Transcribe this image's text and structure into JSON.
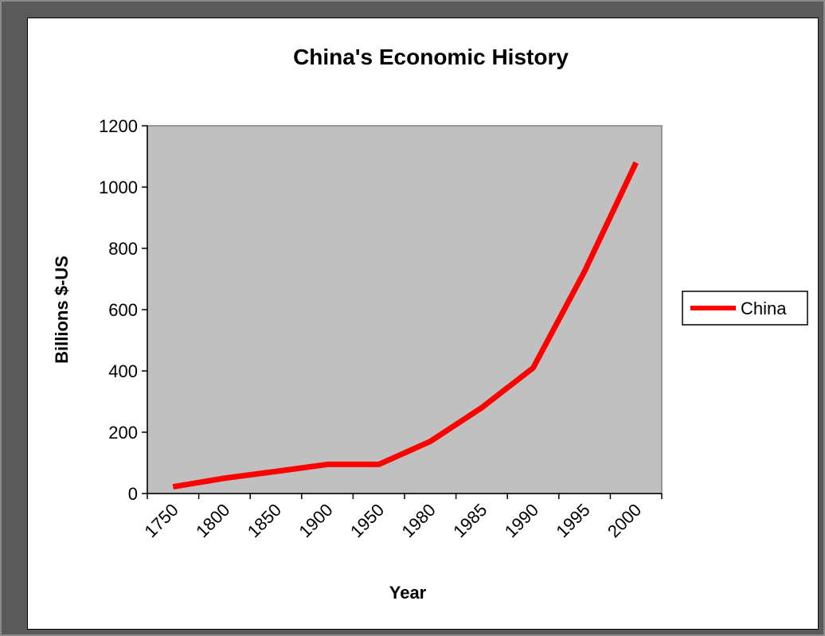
{
  "chart_data": {
    "type": "line",
    "title": "China's  Economic History",
    "xlabel": "Year",
    "ylabel": "Billions $-US",
    "categories": [
      "1750",
      "1800",
      "1850",
      "1900",
      "1950",
      "1980",
      "1985",
      "1990",
      "1995",
      "2000"
    ],
    "yticks": [
      "0",
      "200",
      "400",
      "600",
      "800",
      "1000",
      "1200"
    ],
    "ylim": [
      0,
      1200
    ],
    "grid": false,
    "legend_position": "right",
    "series": [
      {
        "name": "China",
        "color": "#ff0000",
        "values": [
          22,
          50,
          72,
          95,
          95,
          170,
          280,
          410,
          725,
          1080
        ]
      }
    ],
    "plot_background": "#c0c0c0"
  }
}
